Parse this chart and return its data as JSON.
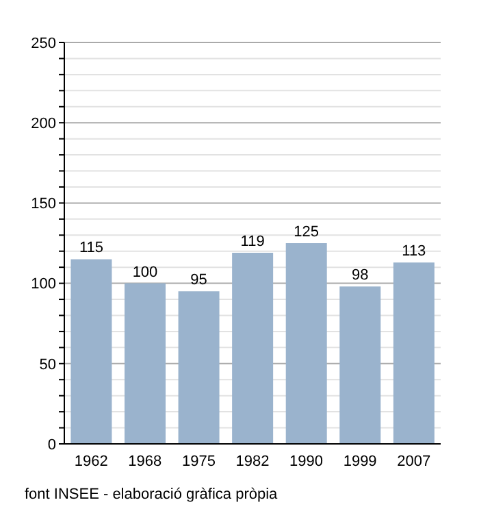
{
  "chart_data": {
    "type": "bar",
    "categories": [
      "1962",
      "1968",
      "1975",
      "1982",
      "1990",
      "1999",
      "2007"
    ],
    "values": [
      115,
      100,
      95,
      119,
      125,
      98,
      113
    ],
    "color": "#9ab3cd",
    "ylim": [
      0,
      250
    ],
    "yticks": [
      0,
      {
        "value": 10,
        "label": null
      },
      {
        "value": 20,
        "label": null
      },
      {
        "value": 30,
        "label": null
      },
      {
        "value": 40,
        "label": null
      },
      50,
      {
        "value": 60,
        "label": null
      },
      {
        "value": 70,
        "label": null
      },
      {
        "value": 80,
        "label": null
      },
      {
        "value": 90,
        "label": null
      },
      100,
      {
        "value": 110,
        "label": null
      },
      {
        "value": 120,
        "label": null
      },
      {
        "value": 130,
        "label": null
      },
      {
        "value": 140,
        "label": null
      },
      150,
      {
        "value": 160,
        "label": null
      },
      {
        "value": 170,
        "label": null
      },
      {
        "value": 180,
        "label": null
      },
      {
        "value": 190,
        "label": null
      },
      200,
      {
        "value": 210,
        "label": null
      },
      {
        "value": 220,
        "label": null
      },
      {
        "value": 230,
        "label": null
      },
      {
        "value": 240,
        "label": null
      },
      250
    ],
    "grid": "y",
    "data_labels": true,
    "annotations": [
      "font INSEE - elaboració gràfica pròpia"
    ]
  }
}
